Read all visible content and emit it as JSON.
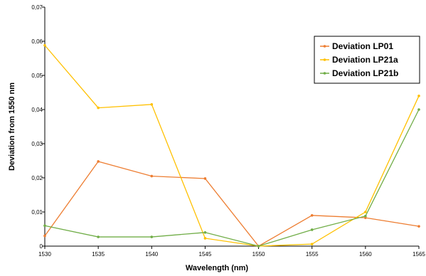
{
  "chart_data": {
    "type": "line",
    "xlabel": "Wavelength (nm)",
    "ylabel": "Deviation from 1550 nm",
    "x": [
      1530,
      1535,
      1540,
      1545,
      1550,
      1555,
      1560,
      1565
    ],
    "xlim": [
      1530,
      1565
    ],
    "ylim": [
      0,
      0.07
    ],
    "x_ticks": [
      "1530",
      "1535",
      "1540",
      "1545",
      "1550",
      "1555",
      "1560",
      "1565"
    ],
    "y_ticks": [
      "0",
      "0,01",
      "0,02",
      "0,03",
      "0,04",
      "0,05",
      "0,06",
      "0,07"
    ],
    "grid": false,
    "legend_position": "top-right",
    "series": [
      {
        "name": "Deviation LP01",
        "color": "#ED7D31",
        "values": [
          0.003,
          0.0248,
          0.0205,
          0.0198,
          0.0,
          0.009,
          0.0083,
          0.0058
        ]
      },
      {
        "name": "Deviation LP21a",
        "color": "#FFC000",
        "values": [
          0.0588,
          0.0405,
          0.0415,
          0.0023,
          0.0,
          0.0006,
          0.01,
          0.044
        ]
      },
      {
        "name": "Deviation LP21b",
        "color": "#70AD47",
        "values": [
          0.006,
          0.0027,
          0.0027,
          0.004,
          0.0,
          0.0048,
          0.0088,
          0.04
        ]
      }
    ]
  }
}
